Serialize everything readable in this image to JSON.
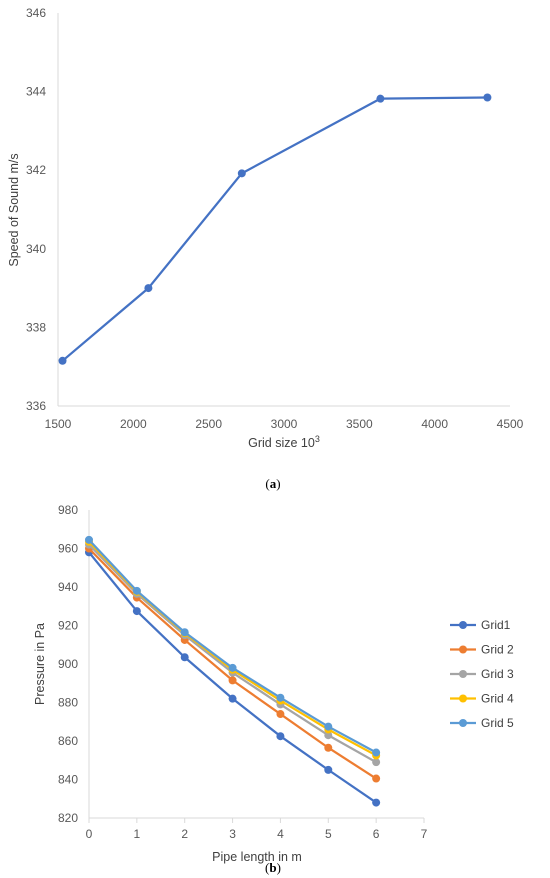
{
  "chart_data": [
    {
      "type": "line",
      "caption_paren_open": "(",
      "caption_letter": "a",
      "caption_paren_close": ")",
      "title": "",
      "xlabel_main": "Grid size 10",
      "xlabel_sup": "3",
      "ylabel": "Speed of Sound m/s",
      "xlim": [
        1500,
        4500
      ],
      "ylim": [
        336,
        346
      ],
      "xticks": [
        1500,
        2000,
        2500,
        3000,
        3500,
        4000,
        4500
      ],
      "yticks": [
        336,
        338,
        340,
        342,
        344,
        346
      ],
      "grid": false,
      "series": [
        {
          "color": "#4472C4",
          "x": [
            1530,
            2100,
            2720,
            3640,
            4350
          ],
          "y": [
            337.15,
            339.0,
            341.92,
            343.82,
            343.85
          ]
        }
      ]
    },
    {
      "type": "line",
      "caption_paren_open": "(",
      "caption_letter": "b",
      "caption_paren_close": ")",
      "title": "",
      "xlabel": "Pipe length in m",
      "ylabel": "Pressure in Pa",
      "xlim": [
        0,
        7
      ],
      "ylim": [
        820,
        980
      ],
      "xticks": [
        0,
        1,
        2,
        3,
        4,
        5,
        6,
        7
      ],
      "yticks": [
        820,
        840,
        860,
        880,
        900,
        920,
        940,
        960,
        980
      ],
      "grid": false,
      "legend": "right",
      "x": [
        0,
        1,
        2,
        3,
        4,
        5,
        6
      ],
      "series": [
        {
          "name": "Grid1",
          "color": "#4472C4",
          "values": [
            958,
            927.5,
            903.5,
            882,
            862.5,
            845,
            828
          ]
        },
        {
          "name": "Grid 2",
          "color": "#ED7D31",
          "values": [
            960,
            934.5,
            912.5,
            891.5,
            874,
            856.5,
            840.5
          ]
        },
        {
          "name": "Grid 3",
          "color": "#A5A5A5",
          "values": [
            962,
            936.5,
            915,
            895.5,
            879,
            863,
            849
          ]
        },
        {
          "name": "Grid 4",
          "color": "#FFC000",
          "values": [
            963.5,
            937.5,
            916,
            897,
            881,
            866,
            852.5
          ]
        },
        {
          "name": "Grid 5",
          "color": "#5B9BD5",
          "values": [
            964.5,
            938,
            916.5,
            898,
            882.5,
            867.5,
            854
          ]
        }
      ]
    }
  ]
}
